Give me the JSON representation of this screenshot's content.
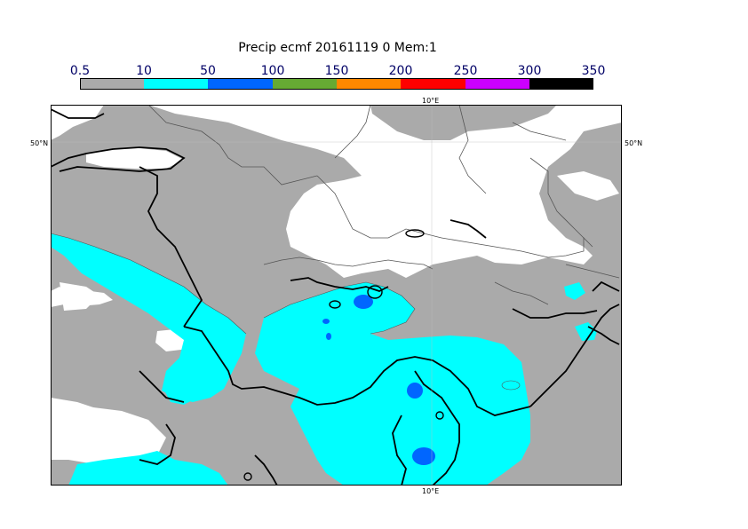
{
  "title": "Precip ecmf 20161119 0 Mem:1",
  "colorbar": {
    "labels": [
      "0.5",
      "10",
      "50",
      "100",
      "150",
      "200",
      "250",
      "300",
      "350"
    ],
    "colors": [
      "#aaaaaa",
      "#00ffff",
      "#0066ff",
      "#66aa33",
      "#ff8800",
      "#ff0000",
      "#cc00ff",
      "#000000"
    ]
  },
  "map": {
    "lat_label_left": "50°N",
    "lat_label_right": "50°N",
    "lon_label_top": "10°E",
    "lon_label_bottom": "10°E",
    "land_color": "#aaaaaa",
    "no_precip_color": "#ffffff"
  }
}
